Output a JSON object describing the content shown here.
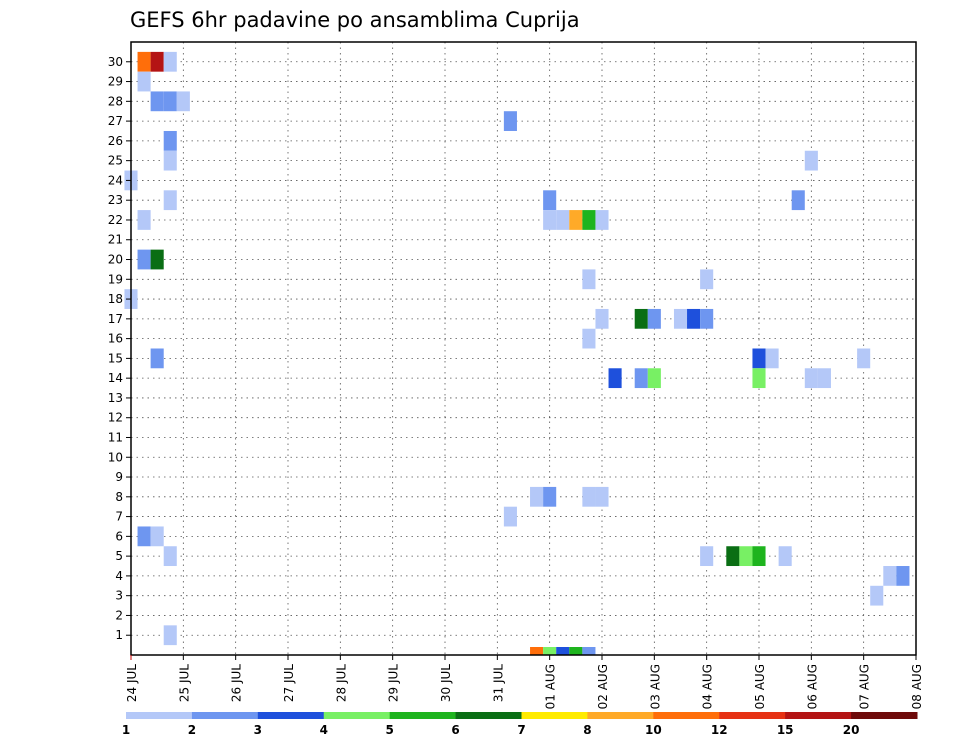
{
  "chart_data": {
    "type": "heatmap",
    "title": "GEFS 6hr padavine po ansamblima Cuprija",
    "xlabel": "",
    "ylabel": "",
    "x_start": "24 JUL 00Z",
    "x_step_hours": 6,
    "x_steps": 61,
    "x_tick_labels": [
      "24 JUL",
      "25 JUL",
      "26 JUL",
      "27 JUL",
      "28 JUL",
      "29 JUL",
      "30 JUL",
      "31 JUL",
      "01 AUG",
      "02 AUG",
      "03 AUG",
      "04 AUG",
      "05 AUG",
      "06 AUG",
      "07 AUG",
      "08 AUG"
    ],
    "y_members": [
      1,
      2,
      3,
      4,
      5,
      6,
      7,
      8,
      9,
      10,
      11,
      12,
      13,
      14,
      15,
      16,
      17,
      18,
      19,
      20,
      21,
      22,
      23,
      24,
      25,
      26,
      27,
      28,
      29,
      30
    ],
    "grid": true,
    "colorbar": {
      "position": "bottom",
      "labels": [
        "1",
        "2",
        "3",
        "4",
        "5",
        "6",
        "7",
        "8",
        "10",
        "12",
        "15",
        "20"
      ],
      "colors": [
        "#b4c8f8",
        "#6e96f0",
        "#1e50dc",
        "#78f064",
        "#1eb41e",
        "#0a6e14",
        "#ffeb00",
        "#ffaa28",
        "#ff6e0a",
        "#e63214",
        "#b41414",
        "#6e0a0a"
      ]
    },
    "cells": [
      {
        "x": "24 JUL 06Z",
        "member": 30,
        "value": 10
      },
      {
        "x": "24 JUL 12Z",
        "member": 30,
        "value": 15
      },
      {
        "x": "24 JUL 18Z",
        "member": 30,
        "value": 1
      },
      {
        "x": "24 JUL 06Z",
        "member": 29,
        "value": 1
      },
      {
        "x": "24 JUL 12Z",
        "member": 28,
        "value": 2
      },
      {
        "x": "24 JUL 18Z",
        "member": 28,
        "value": 2
      },
      {
        "x": "25 JUL 00Z",
        "member": 28,
        "value": 1
      },
      {
        "x": "31 JUL 06Z",
        "member": 27,
        "value": 2
      },
      {
        "x": "24 JUL 18Z",
        "member": 26,
        "value": 2
      },
      {
        "x": "24 JUL 18Z",
        "member": 25,
        "value": 1
      },
      {
        "x": "06 AUG 00Z",
        "member": 25,
        "value": 1
      },
      {
        "x": "24 JUL 00Z",
        "member": 24,
        "value": 1
      },
      {
        "x": "24 JUL 18Z",
        "member": 23,
        "value": 1
      },
      {
        "x": "01 AUG 00Z",
        "member": 23,
        "value": 2
      },
      {
        "x": "05 AUG 18Z",
        "member": 23,
        "value": 2
      },
      {
        "x": "24 JUL 06Z",
        "member": 22,
        "value": 1
      },
      {
        "x": "01 AUG 00Z",
        "member": 22,
        "value": 1
      },
      {
        "x": "01 AUG 06Z",
        "member": 22,
        "value": 1
      },
      {
        "x": "01 AUG 12Z",
        "member": 22,
        "value": 8
      },
      {
        "x": "01 AUG 18Z",
        "member": 22,
        "value": 5
      },
      {
        "x": "02 AUG 00Z",
        "member": 22,
        "value": 1
      },
      {
        "x": "24 JUL 06Z",
        "member": 20,
        "value": 2
      },
      {
        "x": "24 JUL 12Z",
        "member": 20,
        "value": 6
      },
      {
        "x": "01 AUG 18Z",
        "member": 19,
        "value": 1
      },
      {
        "x": "04 AUG 00Z",
        "member": 19,
        "value": 1
      },
      {
        "x": "24 JUL 00Z",
        "member": 18,
        "value": 1
      },
      {
        "x": "02 AUG 00Z",
        "member": 17,
        "value": 1
      },
      {
        "x": "02 AUG 18Z",
        "member": 17,
        "value": 6
      },
      {
        "x": "03 AUG 00Z",
        "member": 17,
        "value": 2
      },
      {
        "x": "03 AUG 12Z",
        "member": 17,
        "value": 1
      },
      {
        "x": "03 AUG 18Z",
        "member": 17,
        "value": 3
      },
      {
        "x": "04 AUG 00Z",
        "member": 17,
        "value": 2
      },
      {
        "x": "01 AUG 18Z",
        "member": 16,
        "value": 1
      },
      {
        "x": "24 JUL 12Z",
        "member": 15,
        "value": 2
      },
      {
        "x": "05 AUG 00Z",
        "member": 15,
        "value": 3
      },
      {
        "x": "05 AUG 06Z",
        "member": 15,
        "value": 1
      },
      {
        "x": "07 AUG 00Z",
        "member": 15,
        "value": 1
      },
      {
        "x": "02 AUG 06Z",
        "member": 14,
        "value": 3
      },
      {
        "x": "02 AUG 18Z",
        "member": 14,
        "value": 2
      },
      {
        "x": "03 AUG 00Z",
        "member": 14,
        "value": 4
      },
      {
        "x": "05 AUG 00Z",
        "member": 14,
        "value": 4
      },
      {
        "x": "06 AUG 00Z",
        "member": 14,
        "value": 1
      },
      {
        "x": "06 AUG 06Z",
        "member": 14,
        "value": 1
      },
      {
        "x": "01 AUG 12Z",
        "member": 1,
        "value": 0
      },
      {
        "x": "31 JUL 18Z",
        "member": 8,
        "value": 1
      },
      {
        "x": "01 AUG 00Z",
        "member": 8,
        "value": 2
      },
      {
        "x": "01 AUG 18Z",
        "member": 8,
        "value": 1
      },
      {
        "x": "02 AUG 00Z",
        "member": 8,
        "value": 1
      },
      {
        "x": "31 JUL 06Z",
        "member": 7,
        "value": 1
      },
      {
        "x": "24 JUL 06Z",
        "member": 6,
        "value": 2
      },
      {
        "x": "24 JUL 12Z",
        "member": 6,
        "value": 1
      },
      {
        "x": "24 JUL 18Z",
        "member": 5,
        "value": 1
      },
      {
        "x": "04 AUG 00Z",
        "member": 5,
        "value": 1
      },
      {
        "x": "04 AUG 12Z",
        "member": 5,
        "value": 6
      },
      {
        "x": "04 AUG 18Z",
        "member": 5,
        "value": 4
      },
      {
        "x": "05 AUG 00Z",
        "member": 5,
        "value": 5
      },
      {
        "x": "05 AUG 12Z",
        "member": 5,
        "value": 1
      },
      {
        "x": "07 AUG 12Z",
        "member": 4,
        "value": 1
      },
      {
        "x": "07 AUG 18Z",
        "member": 4,
        "value": 2
      },
      {
        "x": "07 AUG 06Z",
        "member": 3,
        "value": 1
      },
      {
        "x": "24 JUL 18Z",
        "member": 1,
        "value": 1
      }
    ],
    "bottom_strip": [
      {
        "x": "31 JUL 18Z",
        "value": 10
      },
      {
        "x": "01 AUG 00Z",
        "value": 4
      },
      {
        "x": "01 AUG 06Z",
        "value": 3
      },
      {
        "x": "01 AUG 12Z",
        "value": 5
      },
      {
        "x": "01 AUG 18Z",
        "value": 2
      }
    ]
  }
}
